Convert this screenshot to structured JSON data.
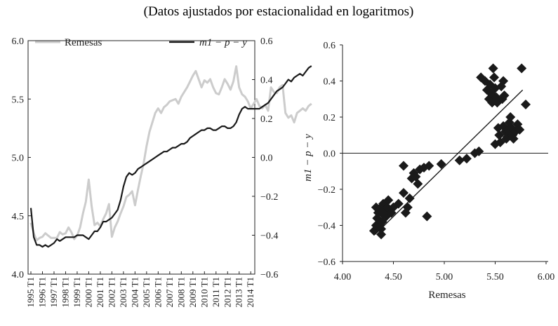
{
  "subtitle": "(Datos ajustados por estacionalidad en logaritmos)",
  "chart_data": [
    {
      "type": "line",
      "title": "",
      "legend": [
        {
          "name": "Remesas",
          "axis": "left",
          "color": "#cccccc"
        },
        {
          "name": "m1 − p − y",
          "axis": "right",
          "color": "#1a1a1a"
        }
      ],
      "x_tick_labels": [
        "1995 T1",
        "1996 T1",
        "1997 T1",
        "1998 T1",
        "1999 T1",
        "2000 T1",
        "2001 T1",
        "2002 T1",
        "2003 T1",
        "2004 T1",
        "2005 T1",
        "2006 T1",
        "2007 T1",
        "2008 T1",
        "2009 T1",
        "2010 T1",
        "2011 T1",
        "2012 T1",
        "2013 T1",
        "2014 T1"
      ],
      "y_left": {
        "range": [
          4.0,
          6.0
        ],
        "ticks": [
          "4.0",
          "4.5",
          "5.0",
          "5.5",
          "6.0"
        ]
      },
      "y_right": {
        "range": [
          -0.6,
          0.6
        ],
        "ticks": [
          "−0.6",
          "−0.4",
          "−0.2",
          "0.0",
          "0.2",
          "0.4",
          "0.6"
        ]
      },
      "series": [
        {
          "name": "Remesas",
          "axis": "left",
          "color": "#cccccc",
          "x_start": 1995.0,
          "step": 0.25,
          "values": [
            4.44,
            4.35,
            4.29,
            4.31,
            4.32,
            4.35,
            4.33,
            4.31,
            4.31,
            4.31,
            4.36,
            4.34,
            4.35,
            4.4,
            4.36,
            4.3,
            4.33,
            4.4,
            4.52,
            4.62,
            4.81,
            4.58,
            4.42,
            4.44,
            4.41,
            4.47,
            4.52,
            4.6,
            4.32,
            4.4,
            4.45,
            4.52,
            4.58,
            4.66,
            4.68,
            4.71,
            4.59,
            4.72,
            4.84,
            4.95,
            5.1,
            5.22,
            5.3,
            5.38,
            5.42,
            5.38,
            5.43,
            5.45,
            5.48,
            5.49,
            5.5,
            5.46,
            5.52,
            5.56,
            5.6,
            5.65,
            5.7,
            5.74,
            5.67,
            5.6,
            5.66,
            5.64,
            5.67,
            5.6,
            5.55,
            5.54,
            5.6,
            5.67,
            5.63,
            5.58,
            5.65,
            5.78,
            5.6,
            5.54,
            5.52,
            5.48,
            5.42,
            5.46,
            5.5,
            5.44,
            5.42,
            5.45,
            5.4,
            5.6,
            5.56,
            5.55,
            5.6,
            5.62,
            5.38,
            5.34,
            5.36,
            5.3,
            5.38,
            5.4,
            5.42,
            5.4,
            5.44,
            5.46
          ]
        },
        {
          "name": "m1 − p − y",
          "axis": "right",
          "color": "#1a1a1a",
          "x_start": 1995.0,
          "step": 0.25,
          "values": [
            -0.26,
            -0.41,
            -0.45,
            -0.45,
            -0.46,
            -0.45,
            -0.46,
            -0.45,
            -0.44,
            -0.42,
            -0.43,
            -0.42,
            -0.41,
            -0.41,
            -0.41,
            -0.41,
            -0.4,
            -0.4,
            -0.4,
            -0.41,
            -0.42,
            -0.4,
            -0.38,
            -0.38,
            -0.36,
            -0.33,
            -0.33,
            -0.32,
            -0.31,
            -0.29,
            -0.27,
            -0.22,
            -0.15,
            -0.1,
            -0.08,
            -0.09,
            -0.08,
            -0.06,
            -0.05,
            -0.04,
            -0.03,
            -0.02,
            -0.01,
            0.0,
            0.01,
            0.02,
            0.03,
            0.03,
            0.04,
            0.05,
            0.05,
            0.06,
            0.07,
            0.07,
            0.08,
            0.1,
            0.11,
            0.12,
            0.13,
            0.14,
            0.14,
            0.15,
            0.15,
            0.14,
            0.14,
            0.15,
            0.16,
            0.16,
            0.15,
            0.15,
            0.16,
            0.18,
            0.22,
            0.25,
            0.26,
            0.25,
            0.25,
            0.25,
            0.25,
            0.25,
            0.26,
            0.27,
            0.28,
            0.3,
            0.32,
            0.34,
            0.35,
            0.36,
            0.38,
            0.4,
            0.39,
            0.41,
            0.42,
            0.43,
            0.42,
            0.44,
            0.46,
            0.47
          ]
        }
      ]
    },
    {
      "type": "scatter",
      "title": "",
      "xlabel": "Remesas",
      "ylabel": "m1 − p − y",
      "xlim": [
        4.0,
        6.0
      ],
      "ylim": [
        -0.6,
        0.6
      ],
      "x_ticks": [
        "4.00",
        "4.50",
        "5.00",
        "5.50",
        "6.00"
      ],
      "y_ticks": [
        "−0.6",
        "−0.4",
        "−0.2",
        "0.0",
        "0.2",
        "0.4",
        "0.6"
      ],
      "fit_line": {
        "x": [
          4.32,
          5.77
        ],
        "y": [
          -0.45,
          0.35
        ]
      },
      "points": [
        [
          4.31,
          -0.43
        ],
        [
          4.33,
          -0.4
        ],
        [
          4.34,
          -0.36
        ],
        [
          4.35,
          -0.33
        ],
        [
          4.33,
          -0.3
        ],
        [
          4.36,
          -0.31
        ],
        [
          4.38,
          -0.45
        ],
        [
          4.38,
          -0.42
        ],
        [
          4.37,
          -0.4
        ],
        [
          4.39,
          -0.38
        ],
        [
          4.4,
          -0.34
        ],
        [
          4.42,
          -0.32
        ],
        [
          4.4,
          -0.28
        ],
        [
          4.44,
          -0.3
        ],
        [
          4.45,
          -0.26
        ],
        [
          4.43,
          -0.35
        ],
        [
          4.48,
          -0.33
        ],
        [
          4.5,
          -0.3
        ],
        [
          4.55,
          -0.28
        ],
        [
          4.6,
          -0.22
        ],
        [
          4.6,
          -0.07
        ],
        [
          4.62,
          -0.33
        ],
        [
          4.64,
          -0.3
        ],
        [
          4.66,
          -0.25
        ],
        [
          4.68,
          -0.14
        ],
        [
          4.7,
          -0.11
        ],
        [
          4.72,
          -0.13
        ],
        [
          4.74,
          -0.17
        ],
        [
          4.76,
          -0.09
        ],
        [
          4.8,
          -0.08
        ],
        [
          4.83,
          -0.35
        ],
        [
          4.85,
          -0.07
        ],
        [
          4.97,
          -0.06
        ],
        [
          5.15,
          -0.04
        ],
        [
          5.22,
          -0.03
        ],
        [
          5.3,
          0.0
        ],
        [
          5.34,
          0.01
        ],
        [
          5.36,
          0.42
        ],
        [
          5.4,
          0.4
        ],
        [
          5.42,
          0.35
        ],
        [
          5.44,
          0.3
        ],
        [
          5.45,
          0.38
        ],
        [
          5.46,
          0.33
        ],
        [
          5.47,
          0.28
        ],
        [
          5.48,
          0.47
        ],
        [
          5.49,
          0.42
        ],
        [
          5.5,
          0.36
        ],
        [
          5.51,
          0.31
        ],
        [
          5.5,
          0.05
        ],
        [
          5.52,
          0.28
        ],
        [
          5.53,
          0.14
        ],
        [
          5.54,
          0.1
        ],
        [
          5.55,
          0.06
        ],
        [
          5.56,
          0.37
        ],
        [
          5.57,
          0.3
        ],
        [
          5.58,
          0.4
        ],
        [
          5.58,
          0.15
        ],
        [
          5.59,
          0.32
        ],
        [
          5.6,
          0.12
        ],
        [
          5.61,
          0.08
        ],
        [
          5.62,
          0.09
        ],
        [
          5.63,
          0.13
        ],
        [
          5.64,
          0.17
        ],
        [
          5.65,
          0.2
        ],
        [
          5.66,
          0.14
        ],
        [
          5.67,
          0.1
        ],
        [
          5.68,
          0.08
        ],
        [
          5.7,
          0.12
        ],
        [
          5.72,
          0.16
        ],
        [
          5.74,
          0.13
        ],
        [
          5.76,
          0.47
        ],
        [
          5.8,
          0.27
        ]
      ]
    }
  ]
}
